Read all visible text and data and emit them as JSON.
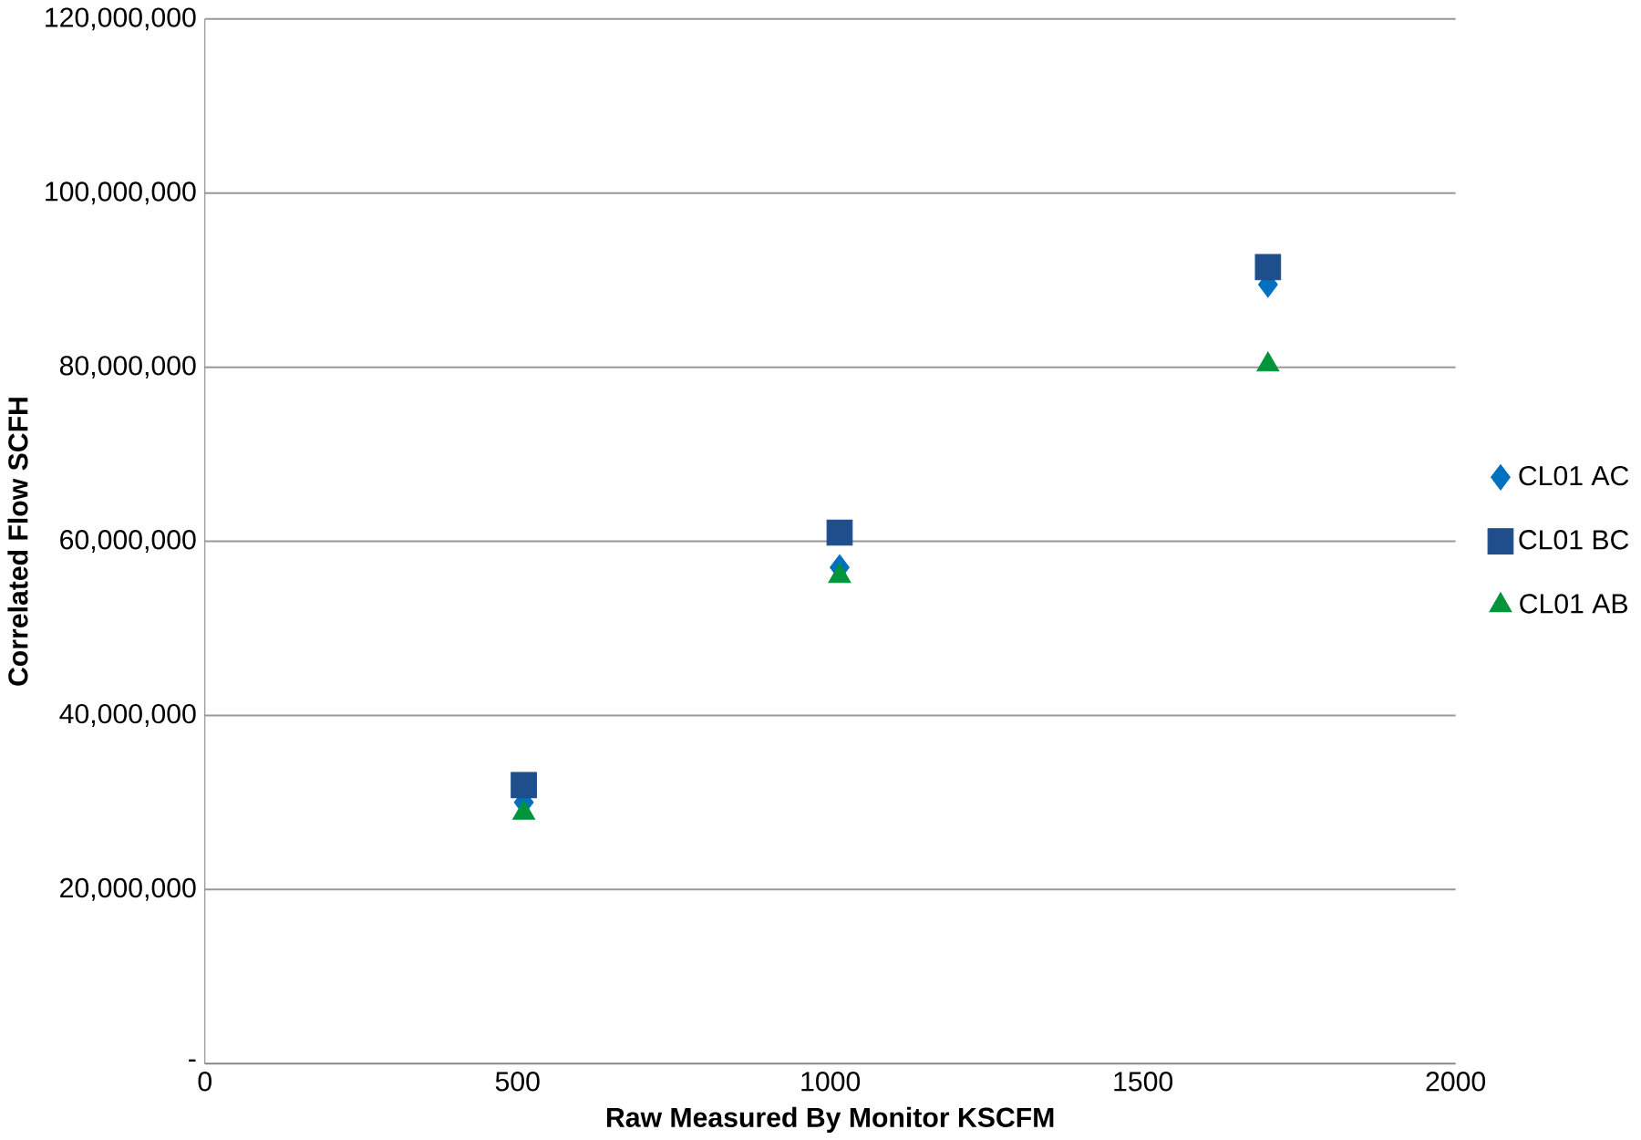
{
  "chart_data": {
    "type": "scatter",
    "xlabel": "Raw Measured By Monitor KSCFM",
    "ylabel": "Correlated Flow SCFH",
    "series": [
      {
        "name": "CL01 AC",
        "color": "#0070c0",
        "marker": "diamond",
        "x": [
          510,
          1015,
          1700
        ],
        "values": [
          30000000,
          57000000,
          89500000
        ]
      },
      {
        "name": "CL01 BC",
        "color": "#1f4e8c",
        "marker": "square",
        "x": [
          510,
          1015,
          1700
        ],
        "values": [
          32000000,
          61000000,
          91500000
        ]
      },
      {
        "name": "CL01 AB",
        "color": "#00953a",
        "marker": "triangle",
        "x": [
          510,
          1015,
          1700
        ],
        "values": [
          28800000,
          56000000,
          80300000
        ]
      }
    ],
    "xlim": [
      0,
      2000
    ],
    "xticks": [
      0,
      500,
      1000,
      1500,
      2000
    ],
    "ylim": [
      0,
      120000000
    ],
    "yticks": [
      {
        "value": 0,
        "label": "-"
      },
      {
        "value": 20000000,
        "label": "20,000,000"
      },
      {
        "value": 40000000,
        "label": "40,000,000"
      },
      {
        "value": 60000000,
        "label": "60,000,000"
      },
      {
        "value": 80000000,
        "label": "80,000,000"
      },
      {
        "value": 100000000,
        "label": "100,000,000"
      },
      {
        "value": 120000000,
        "label": "120,000,000"
      }
    ],
    "grid": "y",
    "legend": "right"
  }
}
